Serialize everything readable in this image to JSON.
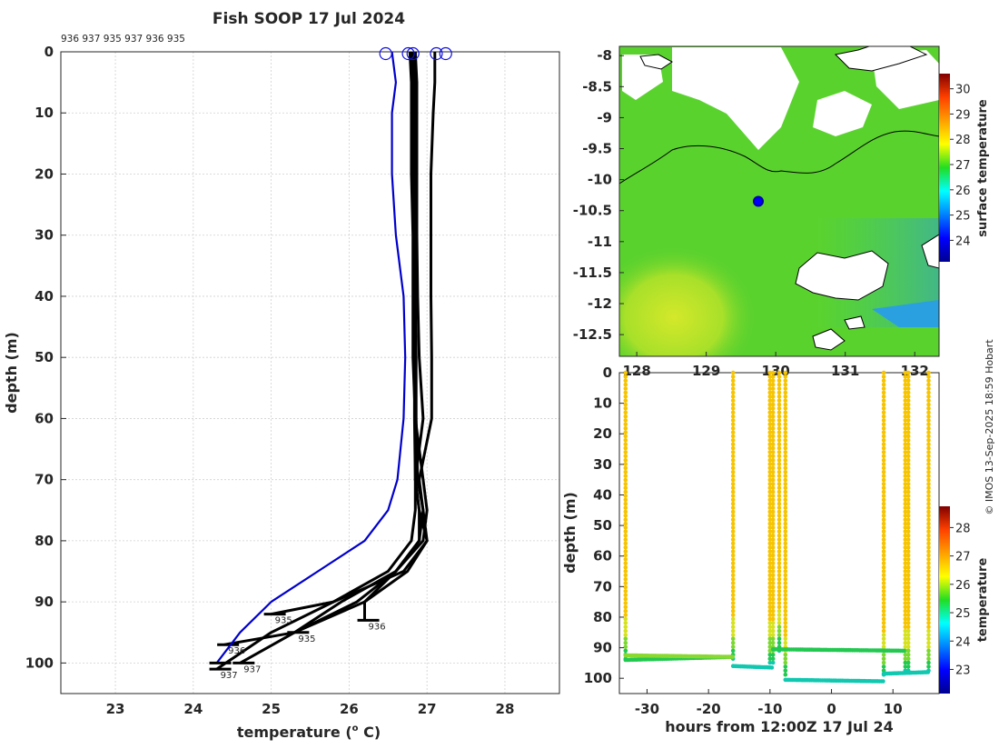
{
  "title": "Fish SOOP 17 Jul 2024",
  "credit": "© IMOS 13-Sep-2025 18:59 Hobart",
  "chart_data": [
    {
      "type": "line",
      "name": "temperature-profiles",
      "xlabel_main": "temperature (",
      "xlabel_sup": "o",
      "xlabel_end": " C)",
      "ylabel": "depth (m)",
      "xlim": [
        22.3,
        28.7
      ],
      "ylim": [
        0,
        105
      ],
      "xticks": [
        "23",
        "24",
        "25",
        "26",
        "27",
        "28"
      ],
      "yticks": [
        "0",
        "10",
        "20",
        "30",
        "40",
        "50",
        "60",
        "70",
        "80",
        "90",
        "100"
      ],
      "station_ids": "936 937 935 937 936 935",
      "bottom_labels": [
        "937",
        "937",
        "936",
        "935",
        "936",
        "935"
      ],
      "series": [
        {
          "name": "profile-blue",
          "color": "#0000cc",
          "depth": [
            0,
            5,
            10,
            20,
            30,
            40,
            50,
            60,
            70,
            75,
            80,
            85,
            90,
            95,
            100
          ],
          "temp": [
            26.55,
            26.6,
            26.55,
            26.55,
            26.6,
            26.7,
            26.72,
            26.7,
            26.62,
            26.5,
            26.2,
            25.6,
            25.0,
            24.6,
            24.3
          ]
        },
        {
          "name": "profile-1",
          "color": "#000000",
          "depth": [
            0,
            5,
            10,
            20,
            30,
            40,
            50,
            60,
            70,
            75,
            80,
            85,
            90,
            95,
            101
          ],
          "temp": [
            26.85,
            26.85,
            26.85,
            26.85,
            26.85,
            26.85,
            26.85,
            26.85,
            26.85,
            26.85,
            26.8,
            26.5,
            25.8,
            25.0,
            24.3
          ]
        },
        {
          "name": "profile-2",
          "color": "#000000",
          "depth": [
            0,
            5,
            10,
            20,
            30,
            40,
            50,
            60,
            70,
            75,
            80,
            85,
            90,
            95,
            100
          ],
          "temp": [
            26.8,
            26.82,
            26.82,
            26.82,
            26.83,
            26.84,
            26.84,
            26.84,
            26.85,
            26.9,
            26.9,
            26.6,
            26.1,
            25.3,
            24.6
          ]
        },
        {
          "name": "profile-3",
          "color": "#000000",
          "depth": [
            0,
            5,
            10,
            20,
            30,
            40,
            50,
            60,
            70,
            75,
            80,
            85,
            90,
            95,
            97
          ],
          "temp": [
            26.78,
            26.8,
            26.8,
            26.8,
            26.82,
            26.82,
            26.82,
            26.85,
            26.95,
            27.0,
            26.95,
            26.6,
            26.2,
            25.3,
            24.4
          ]
        },
        {
          "name": "profile-4",
          "color": "#000000",
          "depth": [
            0,
            5,
            10,
            20,
            30,
            40,
            50,
            60,
            70,
            75,
            80,
            85,
            90,
            92
          ],
          "temp": [
            27.1,
            27.1,
            27.08,
            27.05,
            27.05,
            27.05,
            27.06,
            27.06,
            26.9,
            26.95,
            27.0,
            26.7,
            25.8,
            25.0
          ]
        },
        {
          "name": "profile-5",
          "color": "#000000",
          "depth": [
            0,
            5,
            10,
            20,
            30,
            40,
            50,
            60,
            70,
            75,
            80,
            85,
            90,
            93
          ],
          "temp": [
            26.85,
            26.87,
            26.87,
            26.87,
            26.87,
            26.88,
            26.9,
            26.95,
            26.85,
            26.9,
            27.0,
            26.75,
            26.2,
            26.2
          ]
        },
        {
          "name": "profile-6",
          "color": "#000000",
          "depth": [
            0,
            5,
            10,
            20,
            30,
            40,
            50,
            60,
            70,
            75,
            80,
            85,
            90,
            95
          ],
          "temp": [
            26.82,
            26.84,
            26.84,
            26.84,
            26.85,
            26.85,
            26.86,
            26.86,
            26.88,
            26.95,
            26.9,
            26.6,
            25.9,
            25.3
          ]
        }
      ],
      "surface_markers": [
        26.47,
        26.76,
        26.82,
        27.12,
        27.24
      ]
    },
    {
      "type": "heatmap",
      "name": "sst-map",
      "colorbar_label": "surface temperature",
      "colorbar_ticks": [
        "24",
        "25",
        "26",
        "27",
        "28",
        "29",
        "30"
      ],
      "yticks": [
        "-8",
        "-8.5",
        "-9",
        "-9.5",
        "-10",
        "-10.5",
        "-11",
        "-11.5",
        "-12",
        "-12.5"
      ],
      "xticks": [
        "128",
        "129",
        "130",
        "131",
        "132"
      ],
      "lon_range": [
        127.75,
        132.35
      ],
      "lat_range": [
        -12.85,
        -7.85
      ],
      "vessel_position": {
        "lon": 129.75,
        "lat": -10.35
      }
    },
    {
      "type": "scatter",
      "name": "depth-time-section",
      "xlabel": "hours from 12:00Z 17 Jul 24",
      "ylabel": "depth (m)",
      "xlim": [
        -34.5,
        17.5
      ],
      "ylim": [
        0,
        105
      ],
      "xticks": [
        "-30",
        "-20",
        "-10",
        "0",
        "10"
      ],
      "yticks": [
        "0",
        "10",
        "20",
        "30",
        "40",
        "50",
        "60",
        "70",
        "80",
        "90",
        "100"
      ],
      "colorbar_label": "temperature",
      "colorbar_ticks": [
        "23",
        "24",
        "25",
        "26",
        "27",
        "28"
      ],
      "casts_hours": [
        -33.5,
        -16,
        -10,
        -9.5,
        -8.5,
        -7.5,
        8.5,
        12,
        12.5,
        15.8
      ],
      "casts_maxdepth": [
        94,
        94,
        95,
        95,
        91,
        100,
        99,
        98,
        98,
        98
      ]
    }
  ]
}
